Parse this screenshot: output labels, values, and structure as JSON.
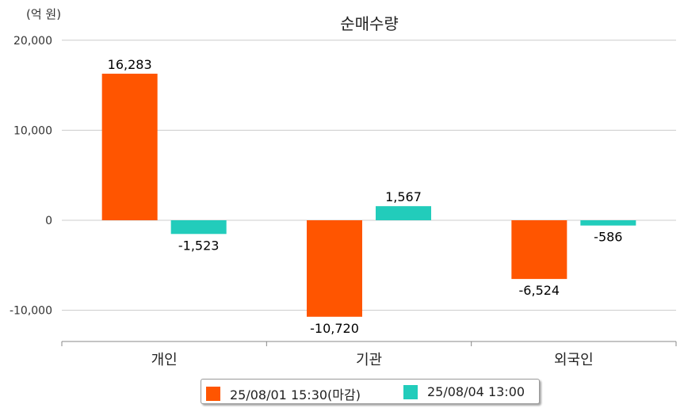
{
  "chart_data": {
    "type": "bar",
    "title": "순매수량",
    "unit_label": "(억 원)",
    "categories": [
      "개인",
      "기관",
      "외국인"
    ],
    "series": [
      {
        "name": "25/08/01 15:30(마감)",
        "color": "#ff5500",
        "values": [
          16283,
          -10720,
          -6524
        ],
        "labels": [
          "16,283",
          "-10,720",
          "-6,524"
        ]
      },
      {
        "name": "25/08/04 13:00",
        "color": "#22ccbb",
        "values": [
          -1523,
          1567,
          -586
        ],
        "labels": [
          "-1,523",
          "1,567",
          "-586"
        ]
      }
    ],
    "yticks": [
      20000,
      10000,
      0,
      -10000
    ],
    "ytick_labels": [
      "20,000",
      "10,000",
      "0",
      "-10,000"
    ],
    "ylim": [
      -13500,
      20000
    ],
    "grid": true,
    "legend_position": "bottom-center"
  }
}
